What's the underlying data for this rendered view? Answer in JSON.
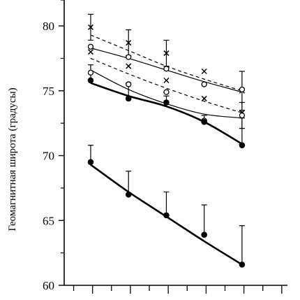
{
  "chart_data": {
    "type": "line",
    "title": "",
    "xlabel": "",
    "ylabel": "Геомагнитная широта (градусы)",
    "x_ticks": [
      1,
      2,
      3,
      4,
      5
    ],
    "xlim": [
      0.3,
      6.2
    ],
    "ylim": [
      60,
      82
    ],
    "y_ticks": [
      60,
      65,
      70,
      75,
      80
    ],
    "y_tick_labels": [
      "60",
      "65",
      "70",
      "75",
      "80"
    ],
    "series": [
      {
        "marker": "cross",
        "line": "dashed",
        "line_width": 1.2,
        "points": [
          {
            "x": 1,
            "y": 79.9,
            "err": 1.0
          },
          {
            "x": 2,
            "y": 78.7,
            "err": 1.0
          },
          {
            "x": 3,
            "y": 77.9,
            "err": 1.0
          },
          {
            "x": 4,
            "y": 76.5,
            "err": 0.0
          },
          {
            "x": 5,
            "y": 75.0,
            "err": 1.5
          }
        ],
        "fit": [
          [
            1,
            79.3
          ],
          [
            2,
            78.1
          ],
          [
            3,
            76.9
          ],
          [
            4,
            75.9
          ],
          [
            5,
            75.0
          ]
        ]
      },
      {
        "marker": "circle-open",
        "line": "solid",
        "line_width": 1.2,
        "points": [
          {
            "x": 1,
            "y": 78.4,
            "err": 0.0
          },
          {
            "x": 2,
            "y": 77.6,
            "err": 0.0
          },
          {
            "x": 3,
            "y": 76.7,
            "err": 0.0
          },
          {
            "x": 4,
            "y": 75.5,
            "err": 0.0
          },
          {
            "x": 5,
            "y": 75.1,
            "err": 0.0
          }
        ],
        "fit": [
          [
            1,
            78.3
          ],
          [
            2,
            77.5
          ],
          [
            3,
            76.6
          ],
          [
            4,
            75.7
          ],
          [
            5,
            74.9
          ]
        ]
      },
      {
        "marker": "cross",
        "line": "dashed",
        "line_width": 1.2,
        "points": [
          {
            "x": 1,
            "y": 78.0,
            "err": 0.0
          },
          {
            "x": 2,
            "y": 76.9,
            "err": 0.0
          },
          {
            "x": 3,
            "y": 75.8,
            "err": 0.0
          },
          {
            "x": 4,
            "y": 74.4,
            "err": 0.0
          },
          {
            "x": 5,
            "y": 73.3,
            "err": 0.0
          }
        ],
        "fit": [
          [
            1,
            77.5
          ],
          [
            2,
            76.3
          ],
          [
            3,
            75.2
          ],
          [
            4,
            74.2
          ],
          [
            5,
            73.3
          ]
        ]
      },
      {
        "marker": "circle-open",
        "line": "solid",
        "line_width": 1.2,
        "points": [
          {
            "x": 1,
            "y": 76.4,
            "err": 0.0
          },
          {
            "x": 2,
            "y": 75.5,
            "err": 0.0
          },
          {
            "x": 3,
            "y": 74.9,
            "err": 0.0
          },
          {
            "x": 4,
            "y": 72.7,
            "err": 0.0
          },
          {
            "x": 5,
            "y": 73.1,
            "err": 1.0
          }
        ],
        "fit": [
          [
            1,
            76.6
          ],
          [
            2,
            75.1
          ],
          [
            3,
            74.0
          ],
          [
            4,
            73.2
          ],
          [
            5,
            72.9
          ]
        ]
      },
      {
        "marker": "circle-filled",
        "line": "solid",
        "line_width": 2.6,
        "points": [
          {
            "x": 1,
            "y": 75.8,
            "err": 1.2
          },
          {
            "x": 2,
            "y": 74.4,
            "err": 1.2
          },
          {
            "x": 3,
            "y": 74.1,
            "err": 0.5
          },
          {
            "x": 4,
            "y": 72.6,
            "err": 0.5
          },
          {
            "x": 5,
            "y": 70.8,
            "err": 2.1
          }
        ],
        "fit": [
          [
            1,
            75.6
          ],
          [
            2,
            74.6
          ],
          [
            3,
            73.8
          ],
          [
            4,
            72.6
          ],
          [
            5,
            70.9
          ]
        ]
      },
      {
        "marker": "circle-filled",
        "line": "solid",
        "line_width": 2.6,
        "points": [
          {
            "x": 1,
            "y": 69.5,
            "err": 1.3
          },
          {
            "x": 2,
            "y": 67.0,
            "err": 1.8
          },
          {
            "x": 3,
            "y": 65.4,
            "err": 1.8
          },
          {
            "x": 4,
            "y": 63.9,
            "err": 2.3
          },
          {
            "x": 5,
            "y": 61.6,
            "err": 3.0
          }
        ],
        "fit": [
          [
            1,
            69.3
          ],
          [
            2,
            67.2
          ],
          [
            3,
            65.3
          ],
          [
            4,
            63.4
          ],
          [
            5,
            61.6
          ]
        ]
      }
    ]
  }
}
